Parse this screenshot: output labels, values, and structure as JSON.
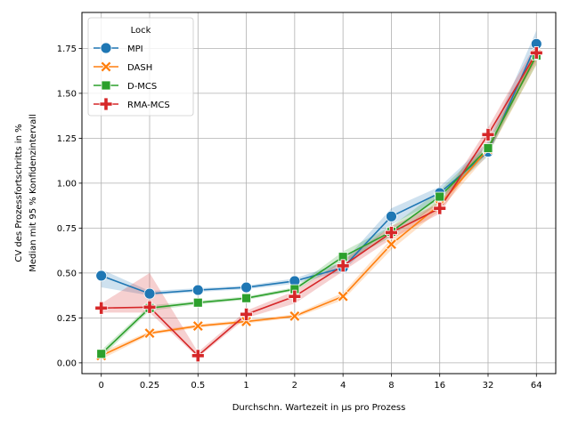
{
  "chart_data": {
    "type": "line",
    "xlabel": "Durchschn. Wartezeit in µs pro Prozess",
    "ylabel_line1": "CV des Prozessfortschritts in %",
    "ylabel_line2": "Median mit 95 % Konfidenzintervall",
    "categories": [
      "0",
      "0.25",
      "0.5",
      "1",
      "2",
      "4",
      "8",
      "16",
      "32",
      "64"
    ],
    "yticks": [
      "0.00",
      "0.25",
      "0.50",
      "0.75",
      "1.00",
      "1.25",
      "1.50",
      "1.75"
    ],
    "ylim": [
      -0.06,
      1.95
    ],
    "grid": true,
    "legend": {
      "title": "Lock",
      "position": "top-left"
    },
    "series": [
      {
        "name": "MPI",
        "color": "#1f77b4",
        "marker": "circle",
        "values": [
          0.485,
          0.385,
          0.405,
          0.42,
          0.455,
          0.53,
          0.815,
          0.945,
          1.175,
          1.775
        ],
        "ci_low": [
          0.42,
          0.375,
          0.395,
          0.41,
          0.44,
          0.51,
          0.77,
          0.91,
          1.15,
          1.72
        ],
        "ci_high": [
          0.52,
          0.4,
          0.415,
          0.43,
          0.47,
          0.56,
          0.86,
          0.98,
          1.23,
          1.85
        ]
      },
      {
        "name": "DASH",
        "color": "#ff7f0e",
        "marker": "x",
        "values": [
          0.04,
          0.165,
          0.205,
          0.23,
          0.26,
          0.37,
          0.66,
          0.88,
          1.19,
          1.715
        ],
        "ci_low": [
          0.02,
          0.155,
          0.195,
          0.22,
          0.25,
          0.35,
          0.63,
          0.85,
          1.16,
          1.66
        ],
        "ci_high": [
          0.06,
          0.175,
          0.215,
          0.24,
          0.27,
          0.39,
          0.69,
          0.91,
          1.22,
          1.76
        ]
      },
      {
        "name": "D-MCS",
        "color": "#2ca02c",
        "marker": "square",
        "values": [
          0.05,
          0.305,
          0.335,
          0.36,
          0.41,
          0.59,
          0.73,
          0.925,
          1.195,
          1.71
        ],
        "ci_low": [
          0.03,
          0.29,
          0.325,
          0.35,
          0.4,
          0.56,
          0.7,
          0.89,
          1.17,
          1.66
        ],
        "ci_high": [
          0.07,
          0.32,
          0.345,
          0.37,
          0.42,
          0.62,
          0.76,
          0.96,
          1.22,
          1.76
        ]
      },
      {
        "name": "RMA-MCS",
        "color": "#d62728",
        "marker": "plus",
        "values": [
          0.305,
          0.31,
          0.04,
          0.27,
          0.37,
          0.54,
          0.725,
          0.86,
          1.27,
          1.725
        ],
        "ci_low": [
          0.28,
          0.28,
          0.03,
          0.25,
          0.33,
          0.51,
          0.69,
          0.83,
          1.23,
          1.68
        ],
        "ci_high": [
          0.33,
          0.5,
          0.06,
          0.29,
          0.4,
          0.57,
          0.76,
          0.89,
          1.31,
          1.78
        ]
      }
    ]
  }
}
